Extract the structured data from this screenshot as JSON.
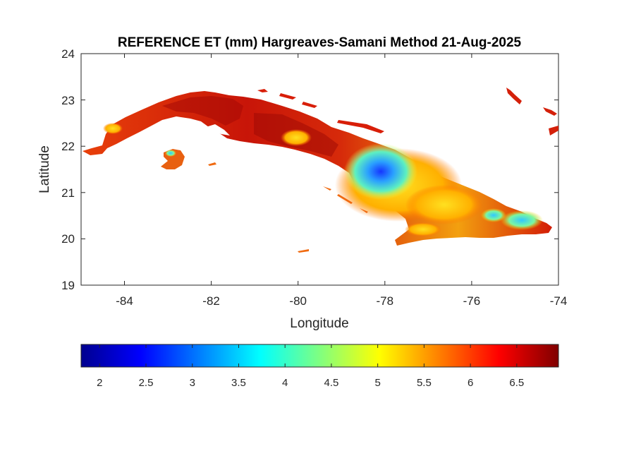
{
  "title": "REFERENCE ET (mm) Hargreaves-Samani Method  21-Aug-2025",
  "xlabel": "Longitude",
  "ylabel": "Latitude",
  "x_ticks": [
    "-84",
    "-82",
    "-80",
    "-78",
    "-76",
    "-74"
  ],
  "y_ticks": [
    "24",
    "23",
    "22",
    "21",
    "20",
    "19"
  ],
  "colorbar_ticks": [
    "2",
    "2.5",
    "3",
    "3.5",
    "4",
    "4.5",
    "5",
    "5.5",
    "6",
    "6.5"
  ],
  "colorbar_range": [
    1.8,
    6.95
  ],
  "colormap": "jet",
  "map": {
    "xlim": [
      -85,
      -74
    ],
    "ylim": [
      19,
      24
    ],
    "region": "Cuba",
    "variable": "Reference evapotranspiration (mm)",
    "dominant_value_range": [
      5.5,
      6.9
    ],
    "low_value_area": "central-east Cuba (around -78.5 lon, 21.5 lat) with values 2.5–4.5"
  }
}
